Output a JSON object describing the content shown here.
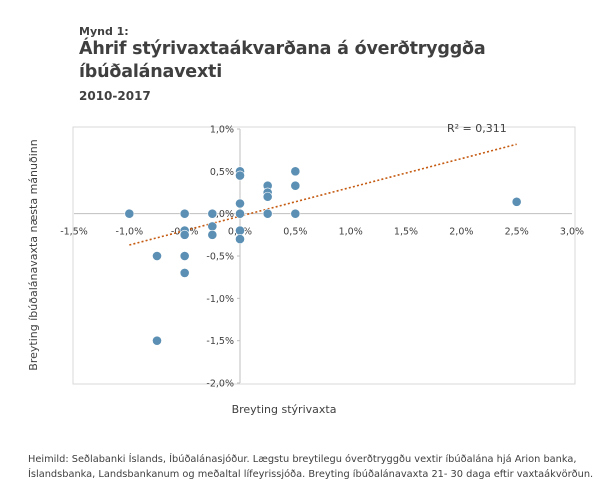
{
  "header": {
    "figure_label": "Mynd 1:",
    "title_line1": "Áhrif stýrivaxtaákvarðana á óverðtryggða",
    "title_line2": "íbúðalánavexti",
    "subtitle": "2010-2017"
  },
  "source_note": "Heimild: Seðlabanki Íslands, Íbúðalánasjóður. Lægstu breytilegu óverðtryggðu vextir íbúðalána hjá Arion banka, Íslandsbanka, Landsbankanum og meðaltal lífeyrissjóða. Breyting íbúðalánavaxta 21- 30 daga eftir vaxtaákvörðun.",
  "colors": {
    "points": "#5b8fb4",
    "trendline": "#c55a11",
    "axis": "#bfbfbf",
    "text": "#404040"
  },
  "chart_data": {
    "type": "scatter",
    "xlabel": "Breyting stýrivaxta",
    "ylabel": "Breyting íbúðalánavaxta næsta mánuðinn",
    "xlim": [
      -1.5,
      3.0
    ],
    "ylim": [
      -2.0,
      1.0
    ],
    "x_ticks": [
      "-1,5%",
      "-1,0%",
      "-0,5%",
      "0,0%",
      "0,5%",
      "1,0%",
      "1,5%",
      "2,0%",
      "2,5%",
      "3,0%"
    ],
    "y_ticks": [
      "-2,0%",
      "-1,5%",
      "-1,0%",
      "-0,5%",
      "0,0%",
      "0,5%",
      "1,0%"
    ],
    "points": [
      {
        "x": -1.0,
        "y": 0.0
      },
      {
        "x": -0.75,
        "y": -0.5
      },
      {
        "x": -0.75,
        "y": -1.5
      },
      {
        "x": -0.5,
        "y": 0.0
      },
      {
        "x": -0.5,
        "y": -0.2
      },
      {
        "x": -0.5,
        "y": -0.25
      },
      {
        "x": -0.5,
        "y": -0.5
      },
      {
        "x": -0.5,
        "y": -0.7
      },
      {
        "x": -0.25,
        "y": 0.0
      },
      {
        "x": -0.25,
        "y": -0.15
      },
      {
        "x": -0.25,
        "y": -0.25
      },
      {
        "x": 0.0,
        "y": 0.5
      },
      {
        "x": 0.0,
        "y": 0.45
      },
      {
        "x": 0.0,
        "y": 0.12
      },
      {
        "x": 0.0,
        "y": 0.0
      },
      {
        "x": 0.0,
        "y": -0.2
      },
      {
        "x": 0.0,
        "y": -0.3
      },
      {
        "x": 0.25,
        "y": 0.33
      },
      {
        "x": 0.25,
        "y": 0.25
      },
      {
        "x": 0.25,
        "y": 0.2
      },
      {
        "x": 0.25,
        "y": 0.0
      },
      {
        "x": 0.5,
        "y": 0.5
      },
      {
        "x": 0.5,
        "y": 0.33
      },
      {
        "x": 0.5,
        "y": 0.0
      },
      {
        "x": 2.5,
        "y": 0.14
      }
    ],
    "trendline": {
      "type": "linear",
      "x_range": [
        -1.0,
        2.5
      ],
      "y_values": [
        -0.37,
        0.82
      ],
      "r_squared_label": "R² = 0,311"
    },
    "grid": false,
    "legend": "none"
  }
}
